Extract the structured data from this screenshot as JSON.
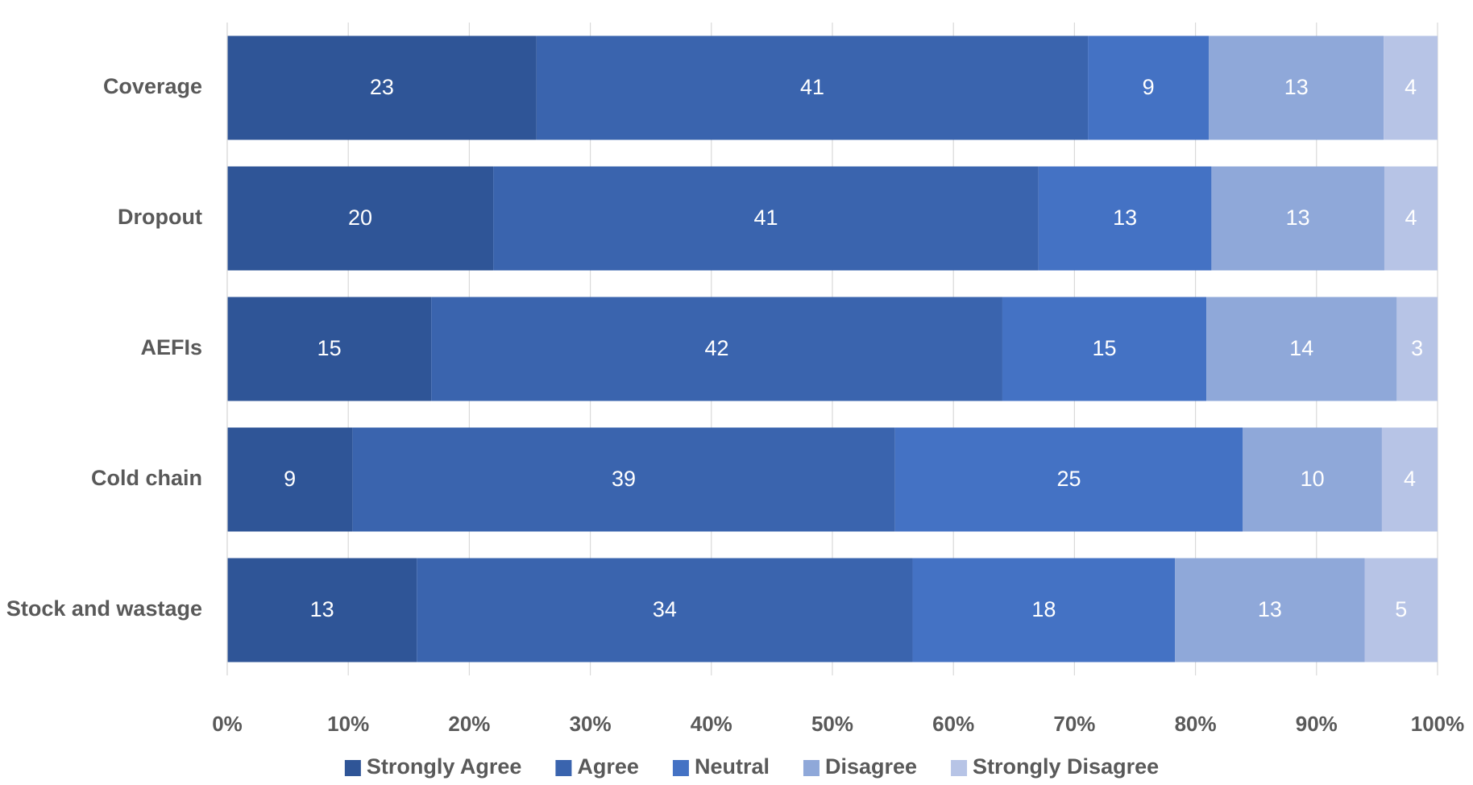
{
  "chart_data": {
    "type": "bar",
    "orientation": "horizontal",
    "stacked": "percent",
    "categories": [
      "Coverage",
      "Dropout",
      "AEFIs",
      "Cold chain",
      "Stock and wastage"
    ],
    "series": [
      {
        "name": "Strongly Agree",
        "color": "#2f5597",
        "values": [
          23,
          20,
          15,
          9,
          13
        ]
      },
      {
        "name": "Agree",
        "color": "#3a64ae",
        "values": [
          41,
          41,
          42,
          39,
          34
        ]
      },
      {
        "name": "Neutral",
        "color": "#4472c4",
        "values": [
          9,
          13,
          15,
          25,
          18
        ]
      },
      {
        "name": "Disagree",
        "color": "#8fa8d9",
        "values": [
          13,
          13,
          14,
          10,
          13
        ]
      },
      {
        "name": "Strongly Disagree",
        "color": "#b7c4e6",
        "values": [
          4,
          4,
          3,
          4,
          5
        ]
      }
    ],
    "xlim": [
      0,
      100
    ],
    "xticks": [
      {
        "value": 0,
        "label": "0%"
      },
      {
        "value": 10,
        "label": "10%"
      },
      {
        "value": 20,
        "label": "20%"
      },
      {
        "value": 30,
        "label": "30%"
      },
      {
        "value": 40,
        "label": "40%"
      },
      {
        "value": 50,
        "label": "50%"
      },
      {
        "value": 60,
        "label": "60%"
      },
      {
        "value": 70,
        "label": "70%"
      },
      {
        "value": 80,
        "label": "80%"
      },
      {
        "value": 90,
        "label": "90%"
      },
      {
        "value": 100,
        "label": "100%"
      }
    ],
    "grid": true,
    "legend": "bottom"
  }
}
